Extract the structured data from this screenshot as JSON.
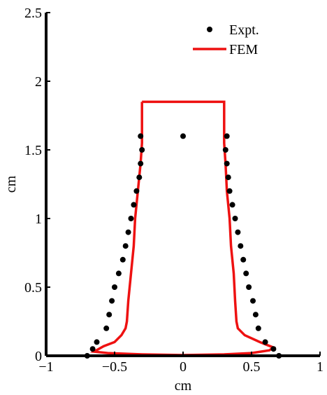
{
  "chart_data": {
    "type": "scatter",
    "xlabel": "cm",
    "ylabel": "cm",
    "xlim": [
      -1,
      1
    ],
    "ylim": [
      0,
      2.5
    ],
    "x_ticks": [
      -1,
      -0.5,
      0,
      0.5,
      1
    ],
    "x_tick_labels": [
      "−1",
      "−0.5",
      "0",
      "0.5",
      "1"
    ],
    "y_ticks": [
      0,
      0.5,
      1,
      1.5,
      2,
      2.5
    ],
    "y_tick_labels": [
      "0",
      "0.5",
      "1",
      "1.5",
      "2",
      "2.5"
    ],
    "grid": false,
    "legend_position": "top-right",
    "series": [
      {
        "name": "Expt.",
        "kind": "scatter",
        "color": "#000000",
        "points": [
          [
            -0.7,
            0.0
          ],
          [
            -0.66,
            0.05
          ],
          [
            -0.63,
            0.1
          ],
          [
            -0.56,
            0.2
          ],
          [
            -0.54,
            0.3
          ],
          [
            -0.52,
            0.4
          ],
          [
            -0.5,
            0.5
          ],
          [
            -0.47,
            0.6
          ],
          [
            -0.44,
            0.7
          ],
          [
            -0.42,
            0.8
          ],
          [
            -0.4,
            0.9
          ],
          [
            -0.38,
            1.0
          ],
          [
            -0.36,
            1.1
          ],
          [
            -0.34,
            1.2
          ],
          [
            -0.32,
            1.3
          ],
          [
            -0.31,
            1.4
          ],
          [
            -0.3,
            1.5
          ],
          [
            -0.31,
            1.6
          ],
          [
            0.0,
            1.6
          ],
          [
            0.32,
            1.6
          ],
          [
            0.31,
            1.5
          ],
          [
            0.32,
            1.4
          ],
          [
            0.33,
            1.3
          ],
          [
            0.34,
            1.2
          ],
          [
            0.36,
            1.1
          ],
          [
            0.38,
            1.0
          ],
          [
            0.4,
            0.9
          ],
          [
            0.42,
            0.8
          ],
          [
            0.44,
            0.7
          ],
          [
            0.46,
            0.6
          ],
          [
            0.48,
            0.5
          ],
          [
            0.51,
            0.4
          ],
          [
            0.53,
            0.3
          ],
          [
            0.55,
            0.2
          ],
          [
            0.6,
            0.1
          ],
          [
            0.66,
            0.05
          ],
          [
            0.7,
            0.0
          ]
        ]
      },
      {
        "name": "FEM",
        "kind": "line",
        "color": "#ee1111",
        "points": [
          [
            -0.3,
            1.85
          ],
          [
            0.3,
            1.85
          ],
          [
            0.3,
            1.55
          ],
          [
            0.31,
            1.4
          ],
          [
            0.32,
            1.2
          ],
          [
            0.34,
            1.0
          ],
          [
            0.35,
            0.8
          ],
          [
            0.37,
            0.6
          ],
          [
            0.38,
            0.4
          ],
          [
            0.39,
            0.25
          ],
          [
            0.4,
            0.2
          ],
          [
            0.45,
            0.15
          ],
          [
            0.56,
            0.1
          ],
          [
            0.66,
            0.06
          ],
          [
            0.63,
            0.04
          ],
          [
            0.5,
            0.02
          ],
          [
            0.3,
            0.01
          ],
          [
            0.0,
            0.005
          ],
          [
            -0.3,
            0.01
          ],
          [
            -0.55,
            0.02
          ],
          [
            -0.65,
            0.03
          ],
          [
            -0.58,
            0.07
          ],
          [
            -0.5,
            0.1
          ],
          [
            -0.45,
            0.15
          ],
          [
            -0.42,
            0.2
          ],
          [
            -0.41,
            0.25
          ],
          [
            -0.4,
            0.4
          ],
          [
            -0.38,
            0.6
          ],
          [
            -0.36,
            0.8
          ],
          [
            -0.35,
            1.0
          ],
          [
            -0.33,
            1.2
          ],
          [
            -0.31,
            1.4
          ],
          [
            -0.3,
            1.55
          ],
          [
            -0.3,
            1.85
          ]
        ]
      }
    ]
  }
}
